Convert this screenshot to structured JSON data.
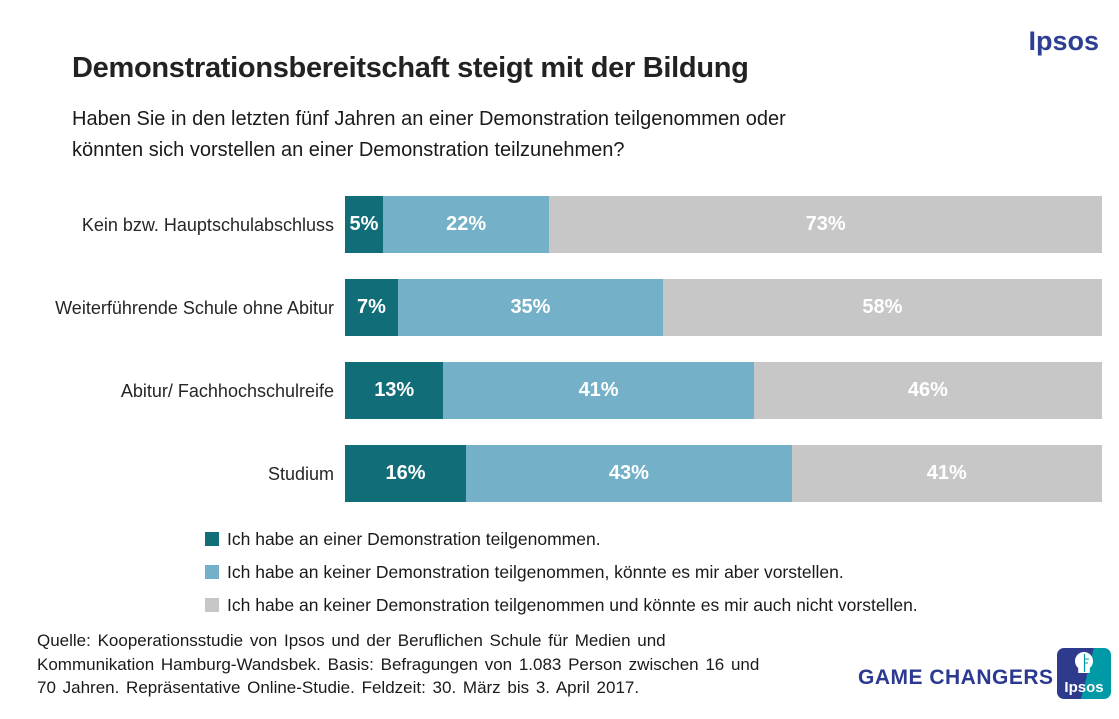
{
  "header": {
    "brand": "Ipsos",
    "title": "Demonstrationsbereitschaft steigt mit der Bildung",
    "subtitle_lines": [
      "Haben Sie in den letzten fünf Jahren an einer Demonstration teilgenommen oder",
      "könnten sich vorstellen an einer Demonstration teilzunehmen?"
    ]
  },
  "chart_data": {
    "type": "bar",
    "orientation": "horizontal",
    "stacked": true,
    "unit": "%",
    "xlim": [
      0,
      100
    ],
    "grid": false,
    "legend_position": "bottom",
    "value_labels": "inside-center-white-bold",
    "categories": [
      "Kein bzw. Hauptschulabschluss",
      "Weiterführende Schule ohne Abitur",
      "Abitur/ Fachhochschulreife",
      "Studium"
    ],
    "series": [
      {
        "name": "Ich habe an einer Demonstration teilgenommen.",
        "color": "#116d78",
        "values": [
          5,
          7,
          13,
          16
        ]
      },
      {
        "name": "Ich habe an keiner Demonstration teilgenommen, könnte es mir aber vorstellen.",
        "color": "#74b0c7",
        "values": [
          22,
          35,
          41,
          43
        ]
      },
      {
        "name": "Ich habe an keiner Demonstration teilgenommen und könnte es mir auch nicht vorstellen.",
        "color": "#c7c7c7",
        "values": [
          73,
          58,
          46,
          41
        ]
      }
    ]
  },
  "footer": {
    "source_lines": [
      "Quelle: Kooperationsstudie von Ipsos und der Beruflichen Schule für Medien und",
      "Kommunikation Hamburg-Wandsbek. Basis: Befragungen von 1.083 Person zwischen 16 und",
      "70 Jahren. Repräsentative Online-Studie. Feldzeit: 30. März bis 3. April 2017."
    ],
    "tagline": "GAME CHANGERS",
    "logo_text": "Ipsos"
  },
  "colors": {
    "brand_blue": "#2e3f92",
    "tagline_blue": "#2b3990",
    "logo_navy": "#2e3a8c",
    "logo_teal": "#009aa6",
    "text_dark": "#262626"
  }
}
